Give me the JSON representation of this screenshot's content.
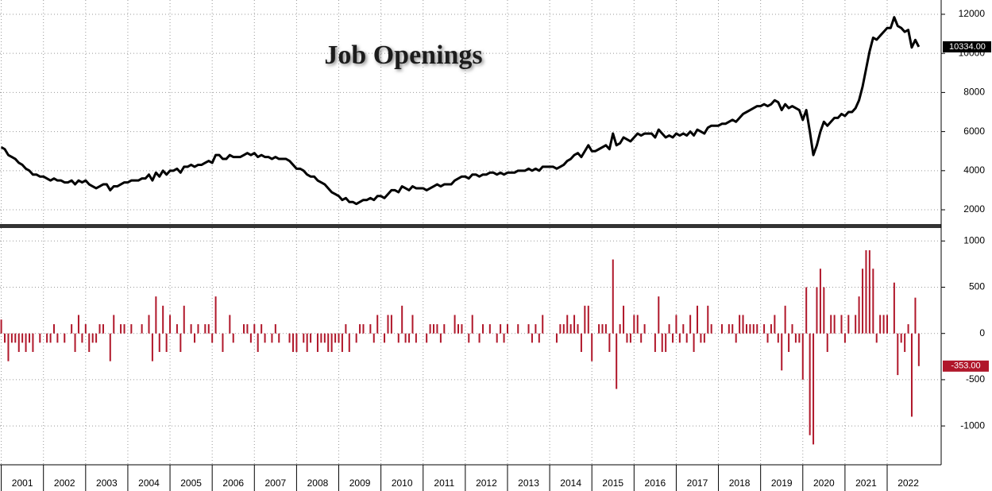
{
  "chart_data": [
    {
      "type": "line",
      "title": "Job Openings",
      "color": "#000000",
      "last_value_label": "10334.00",
      "xlim": [
        2000.97,
        2023.28
      ],
      "ylim": [
        1270,
        12730
      ],
      "yticks": [
        2000,
        4000,
        6000,
        8000,
        10000,
        12000
      ],
      "grid": true,
      "x": [
        2001,
        2001.083,
        2001.167,
        2001.25,
        2001.333,
        2001.417,
        2001.5,
        2001.583,
        2001.667,
        2001.75,
        2001.833,
        2001.917,
        2002,
        2002.083,
        2002.167,
        2002.25,
        2002.333,
        2002.417,
        2002.5,
        2002.583,
        2002.667,
        2002.75,
        2002.833,
        2002.917,
        2003,
        2003.083,
        2003.167,
        2003.25,
        2003.333,
        2003.417,
        2003.5,
        2003.583,
        2003.667,
        2003.75,
        2003.833,
        2003.917,
        2004,
        2004.083,
        2004.167,
        2004.25,
        2004.333,
        2004.417,
        2004.5,
        2004.583,
        2004.667,
        2004.75,
        2004.833,
        2004.917,
        2005,
        2005.083,
        2005.167,
        2005.25,
        2005.333,
        2005.417,
        2005.5,
        2005.583,
        2005.667,
        2005.75,
        2005.833,
        2005.917,
        2006,
        2006.083,
        2006.167,
        2006.25,
        2006.333,
        2006.417,
        2006.5,
        2006.583,
        2006.667,
        2006.75,
        2006.833,
        2006.917,
        2007,
        2007.083,
        2007.167,
        2007.25,
        2007.333,
        2007.417,
        2007.5,
        2007.583,
        2007.667,
        2007.75,
        2007.833,
        2007.917,
        2008,
        2008.083,
        2008.167,
        2008.25,
        2008.333,
        2008.417,
        2008.5,
        2008.583,
        2008.667,
        2008.75,
        2008.833,
        2008.917,
        2009,
        2009.083,
        2009.167,
        2009.25,
        2009.333,
        2009.417,
        2009.5,
        2009.583,
        2009.667,
        2009.75,
        2009.833,
        2009.917,
        2010,
        2010.083,
        2010.167,
        2010.25,
        2010.333,
        2010.417,
        2010.5,
        2010.583,
        2010.667,
        2010.75,
        2010.833,
        2010.917,
        2011,
        2011.083,
        2011.167,
        2011.25,
        2011.333,
        2011.417,
        2011.5,
        2011.583,
        2011.667,
        2011.75,
        2011.833,
        2011.917,
        2012,
        2012.083,
        2012.167,
        2012.25,
        2012.333,
        2012.417,
        2012.5,
        2012.583,
        2012.667,
        2012.75,
        2012.833,
        2012.917,
        2013,
        2013.083,
        2013.167,
        2013.25,
        2013.333,
        2013.417,
        2013.5,
        2013.583,
        2013.667,
        2013.75,
        2013.833,
        2013.917,
        2014,
        2014.083,
        2014.167,
        2014.25,
        2014.333,
        2014.417,
        2014.5,
        2014.583,
        2014.667,
        2014.75,
        2014.833,
        2014.917,
        2015,
        2015.083,
        2015.167,
        2015.25,
        2015.333,
        2015.417,
        2015.5,
        2015.583,
        2015.667,
        2015.75,
        2015.833,
        2015.917,
        2016,
        2016.083,
        2016.167,
        2016.25,
        2016.333,
        2016.417,
        2016.5,
        2016.583,
        2016.667,
        2016.75,
        2016.833,
        2016.917,
        2017,
        2017.083,
        2017.167,
        2017.25,
        2017.333,
        2017.417,
        2017.5,
        2017.583,
        2017.667,
        2017.75,
        2017.833,
        2017.917,
        2018,
        2018.083,
        2018.167,
        2018.25,
        2018.333,
        2018.417,
        2018.5,
        2018.583,
        2018.667,
        2018.75,
        2018.833,
        2018.917,
        2019,
        2019.083,
        2019.167,
        2019.25,
        2019.333,
        2019.417,
        2019.5,
        2019.583,
        2019.667,
        2019.75,
        2019.833,
        2019.917,
        2020,
        2020.083,
        2020.167,
        2020.25,
        2020.333,
        2020.417,
        2020.5,
        2020.583,
        2020.667,
        2020.75,
        2020.833,
        2020.917,
        2021,
        2021.083,
        2021.167,
        2021.25,
        2021.333,
        2021.417,
        2021.5,
        2021.583,
        2021.667,
        2021.75,
        2021.833,
        2021.917,
        2022,
        2022.083,
        2022.167,
        2022.25,
        2022.333,
        2022.417,
        2022.5,
        2022.583,
        2022.667,
        2022.75
      ],
      "values": [
        5200,
        5100,
        4800,
        4700,
        4600,
        4400,
        4300,
        4100,
        4000,
        3800,
        3800,
        3700,
        3700,
        3600,
        3500,
        3600,
        3500,
        3500,
        3400,
        3400,
        3500,
        3300,
        3500,
        3400,
        3500,
        3300,
        3200,
        3100,
        3200,
        3300,
        3300,
        3000,
        3200,
        3200,
        3300,
        3400,
        3400,
        3500,
        3500,
        3500,
        3600,
        3600,
        3800,
        3500,
        3900,
        3700,
        4000,
        3800,
        4000,
        4000,
        4100,
        3900,
        4200,
        4200,
        4300,
        4200,
        4300,
        4300,
        4400,
        4500,
        4400,
        4800,
        4800,
        4600,
        4600,
        4800,
        4700,
        4700,
        4700,
        4800,
        4900,
        4800,
        4900,
        4700,
        4800,
        4700,
        4700,
        4600,
        4700,
        4600,
        4600,
        4600,
        4500,
        4300,
        4100,
        4100,
        4000,
        3800,
        3700,
        3700,
        3500,
        3400,
        3300,
        3100,
        2900,
        2800,
        2700,
        2500,
        2600,
        2400,
        2400,
        2300,
        2400,
        2500,
        2500,
        2600,
        2500,
        2700,
        2700,
        2600,
        2800,
        3000,
        3000,
        2900,
        3200,
        3100,
        3000,
        3200,
        3100,
        3100,
        3100,
        3000,
        3100,
        3200,
        3300,
        3200,
        3300,
        3300,
        3300,
        3500,
        3600,
        3700,
        3700,
        3600,
        3800,
        3800,
        3700,
        3800,
        3800,
        3900,
        3900,
        3800,
        3900,
        3800,
        3900,
        3900,
        3900,
        4000,
        4000,
        4000,
        4100,
        4000,
        4100,
        4000,
        4200,
        4200,
        4200,
        4200,
        4100,
        4200,
        4300,
        4500,
        4600,
        4800,
        4900,
        4700,
        5000,
        5300,
        5000,
        5000,
        5100,
        5200,
        5300,
        5100,
        5900,
        5300,
        5400,
        5700,
        5600,
        5500,
        5700,
        5900,
        5800,
        5900,
        5900,
        5900,
        5700,
        6100,
        5900,
        5700,
        5800,
        5700,
        5900,
        5800,
        5900,
        5800,
        6000,
        5800,
        6100,
        6000,
        5900,
        6200,
        6300,
        6300,
        6300,
        6400,
        6400,
        6500,
        6600,
        6500,
        6700,
        6900,
        7000,
        7100,
        7200,
        7300,
        7300,
        7400,
        7300,
        7400,
        7600,
        7500,
        7100,
        7400,
        7200,
        7300,
        7200,
        7100,
        6600,
        7100,
        6000,
        4800,
        5300,
        6000,
        6500,
        6300,
        6500,
        6700,
        6700,
        6900,
        6800,
        7000,
        7000,
        7200,
        7600,
        8300,
        9200,
        10100,
        10800,
        10700,
        10900,
        11100,
        11300,
        11300,
        11850,
        11400,
        11300,
        11100,
        11200,
        10300,
        10687,
        10334
      ]
    },
    {
      "type": "bar",
      "color": "#b0172a",
      "last_value_label": "-353.00",
      "ylim": [
        -1420,
        1140
      ],
      "yticks": [
        -1000,
        -500,
        0,
        500,
        1000
      ],
      "grid": true,
      "xticks": [
        2001,
        2002,
        2003,
        2004,
        2005,
        2006,
        2007,
        2008,
        2009,
        2010,
        2011,
        2012,
        2013,
        2014,
        2015,
        2016,
        2017,
        2018,
        2019,
        2020,
        2021,
        2022
      ],
      "values": [
        150,
        -100,
        -300,
        -100,
        -100,
        -200,
        -100,
        -200,
        -100,
        -200,
        0,
        -100,
        0,
        -100,
        -100,
        100,
        -100,
        0,
        -100,
        0,
        100,
        -200,
        200,
        -100,
        100,
        -200,
        -100,
        -100,
        100,
        100,
        0,
        -300,
        200,
        0,
        100,
        100,
        0,
        100,
        0,
        0,
        100,
        0,
        200,
        -300,
        400,
        -200,
        300,
        -200,
        200,
        0,
        100,
        -200,
        300,
        0,
        100,
        -100,
        100,
        0,
        100,
        100,
        -100,
        400,
        0,
        -200,
        0,
        200,
        -100,
        0,
        0,
        100,
        100,
        -100,
        100,
        -200,
        100,
        -100,
        0,
        -100,
        100,
        -100,
        0,
        0,
        -100,
        -200,
        -200,
        0,
        -100,
        -200,
        -100,
        0,
        -200,
        -100,
        -100,
        -200,
        -200,
        -100,
        -100,
        -200,
        100,
        -200,
        0,
        -100,
        100,
        100,
        0,
        100,
        -100,
        200,
        0,
        -100,
        200,
        200,
        0,
        -100,
        300,
        -100,
        -100,
        200,
        -100,
        0,
        0,
        -100,
        100,
        100,
        100,
        -100,
        100,
        0,
        0,
        200,
        100,
        100,
        0,
        -100,
        200,
        0,
        -100,
        100,
        0,
        100,
        0,
        -100,
        100,
        -100,
        100,
        0,
        0,
        100,
        0,
        0,
        100,
        -100,
        100,
        -100,
        200,
        0,
        0,
        0,
        -100,
        100,
        100,
        200,
        100,
        200,
        100,
        -200,
        300,
        300,
        -300,
        0,
        100,
        100,
        100,
        -200,
        800,
        -600,
        100,
        300,
        -100,
        -100,
        200,
        200,
        -100,
        100,
        0,
        0,
        -200,
        400,
        -200,
        -200,
        100,
        -100,
        200,
        -100,
        100,
        -100,
        200,
        -200,
        300,
        -100,
        -100,
        300,
        100,
        0,
        0,
        100,
        0,
        100,
        100,
        -100,
        200,
        200,
        100,
        100,
        100,
        100,
        0,
        100,
        -100,
        100,
        200,
        -100,
        -400,
        300,
        -200,
        100,
        -100,
        -100,
        -500,
        500,
        -1100,
        -1200,
        500,
        700,
        500,
        -200,
        200,
        200,
        0,
        200,
        -100,
        200,
        0,
        200,
        400,
        700,
        900,
        900,
        700,
        -100,
        200,
        200,
        200,
        0,
        550,
        -450,
        -100,
        -200,
        100,
        -900,
        387,
        -353
      ]
    }
  ]
}
